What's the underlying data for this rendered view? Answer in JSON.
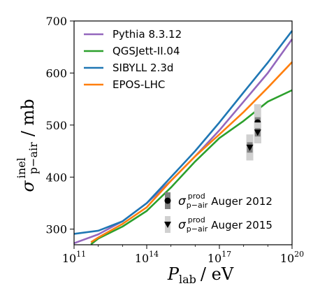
{
  "chart_data": {
    "type": "line",
    "xlabel": {
      "var": "P",
      "sub": "lab",
      "unit": "/ eV"
    },
    "ylabel": {
      "var": "σ",
      "sup": "inel",
      "sub": "p−air",
      "unit": "/ mb"
    },
    "x_scale": "log",
    "xlim": [
      100000000000.0,
      1e+20
    ],
    "ylim": [
      270,
      700
    ],
    "x_ticks": [
      {
        "base": "10",
        "exp": "11",
        "value": 100000000000.0
      },
      {
        "base": "10",
        "exp": "14",
        "value": 100000000000000.0
      },
      {
        "base": "10",
        "exp": "17",
        "value": 1e+17
      },
      {
        "base": "10",
        "exp": "20",
        "value": 1e+20
      }
    ],
    "y_ticks": [
      "300",
      "400",
      "500",
      "600",
      "700"
    ],
    "grid": false,
    "legend_position": "top-left",
    "series": [
      {
        "name": "Pythia 8.3.12",
        "color": "#9467bd",
        "points": [
          [
            100000000000.0,
            273
          ],
          [
            1000000000000.0,
            290
          ],
          [
            10000000000000.0,
            315
          ],
          [
            100000000000000.0,
            350
          ],
          [
            1000000000000000.0,
            393
          ],
          [
            1e+16,
            440
          ],
          [
            1e+17,
            490
          ],
          [
            1e+18,
            545
          ],
          [
            1e+19,
            600
          ],
          [
            1e+20,
            665
          ]
        ]
      },
      {
        "name": "QGSJett-II.04",
        "color": "#2ca02c",
        "points": [
          [
            500000000000.0,
            271
          ],
          [
            1000000000000.0,
            282
          ],
          [
            10000000000000.0,
            305
          ],
          [
            100000000000000.0,
            335
          ],
          [
            1000000000000000.0,
            380
          ],
          [
            1e+16,
            430
          ],
          [
            1e+17,
            475
          ],
          [
            1e+18,
            508
          ],
          [
            1e+19,
            545
          ],
          [
            1e+20,
            567
          ]
        ]
      },
      {
        "name": "SIBYLL 2.3d",
        "color": "#1f77b4",
        "points": [
          [
            100000000000.0,
            291
          ],
          [
            1000000000000.0,
            297
          ],
          [
            10000000000000.0,
            315
          ],
          [
            100000000000000.0,
            350
          ],
          [
            1000000000000000.0,
            400
          ],
          [
            1e+16,
            450
          ],
          [
            1e+17,
            505
          ],
          [
            1e+18,
            563
          ],
          [
            1e+19,
            620
          ],
          [
            1e+20,
            681
          ]
        ]
      },
      {
        "name": "EPOS-LHC",
        "color": "#ff7f0e",
        "points": [
          [
            500000000000.0,
            275
          ],
          [
            1000000000000.0,
            284
          ],
          [
            10000000000000.0,
            310
          ],
          [
            100000000000000.0,
            342
          ],
          [
            1000000000000000.0,
            393
          ],
          [
            1e+16,
            440
          ],
          [
            1e+17,
            482
          ],
          [
            1e+18,
            525
          ],
          [
            1e+19,
            572
          ],
          [
            1e+20,
            621
          ]
        ]
      }
    ],
    "measurements": [
      {
        "name_sym": "σ",
        "name_sup": "prod",
        "name_sub": "p−air",
        "name_text": "Auger 2012",
        "marker": "circle",
        "x": 3.8e+18,
        "y": 505,
        "stat": [
          495,
          515
        ],
        "sys": [
          465,
          540
        ]
      },
      {
        "name_sym": "σ",
        "name_sup": "prod",
        "name_sub": "p−air",
        "name_text": "Auger 2015",
        "marker": "triangle-down",
        "x": 3.8e+18,
        "y": 486,
        "stat": [
          478,
          494
        ],
        "sys": [
          465,
          505
        ]
      },
      {
        "name_sym": "σ",
        "name_sup": "prod",
        "name_sub": "p−air",
        "name_text": "Auger 2015",
        "marker": "triangle-down",
        "x": 1.8e+18,
        "y": 457,
        "stat": [
          447,
          467
        ],
        "sys": [
          432,
          482
        ]
      }
    ]
  }
}
